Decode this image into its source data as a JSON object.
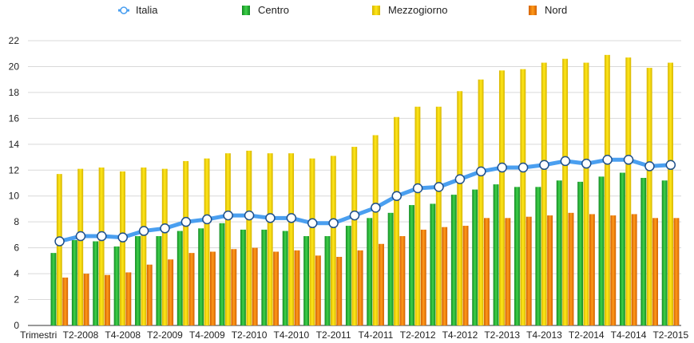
{
  "chart_data": {
    "type": "bar",
    "categories": [
      "Trimestri",
      "",
      "T2-2008",
      "",
      "T4-2008",
      "",
      "T2-2009",
      "",
      "T4-2009",
      "",
      "T2-2010",
      "",
      "T4-2010",
      "",
      "T2-2011",
      "",
      "T4-2011",
      "",
      "T2-2012",
      "",
      "T4-2012",
      "",
      "T2-2013",
      "",
      "T4-2013",
      "",
      "T2-2014",
      "",
      "T4-2014",
      "",
      "T2-2015"
    ],
    "ylim": [
      0,
      22
    ],
    "yticks": [
      "0",
      "2",
      "4",
      "6",
      "8",
      "10",
      "12",
      "14",
      "16",
      "18",
      "20",
      "22"
    ],
    "grid": true,
    "legend_position": "top",
    "series": [
      {
        "name": "Italia",
        "kind": "line",
        "color": "#4a9ff0",
        "values": [
          null,
          6.5,
          6.9,
          6.9,
          6.8,
          7.3,
          7.5,
          8.0,
          8.2,
          8.5,
          8.5,
          8.3,
          8.3,
          7.9,
          7.9,
          8.5,
          9.1,
          10.0,
          10.6,
          10.7,
          11.3,
          11.9,
          12.2,
          12.2,
          12.4,
          12.7,
          12.5,
          12.8,
          12.8,
          12.3,
          12.4
        ]
      },
      {
        "name": "Centro",
        "kind": "bar",
        "color": "#22b833",
        "values": [
          null,
          5.6,
          6.6,
          6.5,
          6.1,
          6.9,
          6.9,
          7.3,
          7.5,
          7.9,
          7.4,
          7.4,
          7.3,
          6.9,
          6.9,
          7.7,
          8.3,
          8.7,
          9.3,
          9.4,
          10.1,
          10.5,
          10.9,
          10.7,
          10.7,
          11.2,
          11.1,
          11.5,
          11.8,
          11.4,
          11.2
        ]
      },
      {
        "name": "Mezzogiorno",
        "kind": "bar",
        "color": "#f2d400",
        "values": [
          null,
          11.7,
          12.1,
          12.2,
          11.9,
          12.2,
          12.1,
          12.7,
          12.9,
          13.3,
          13.5,
          13.3,
          13.3,
          12.9,
          13.1,
          13.8,
          14.7,
          16.1,
          16.9,
          16.9,
          18.1,
          19.0,
          19.7,
          19.8,
          20.3,
          20.6,
          20.3,
          20.9,
          20.7,
          19.9,
          20.3
        ]
      },
      {
        "name": "Nord",
        "kind": "bar",
        "color": "#f07a00",
        "values": [
          null,
          3.7,
          4.0,
          3.9,
          4.1,
          4.7,
          5.1,
          5.6,
          5.7,
          5.9,
          6.0,
          5.7,
          5.8,
          5.4,
          5.3,
          5.8,
          6.3,
          6.9,
          7.4,
          7.6,
          7.7,
          8.3,
          8.3,
          8.4,
          8.5,
          8.7,
          8.6,
          8.5,
          8.6,
          8.3,
          8.3
        ]
      }
    ]
  }
}
